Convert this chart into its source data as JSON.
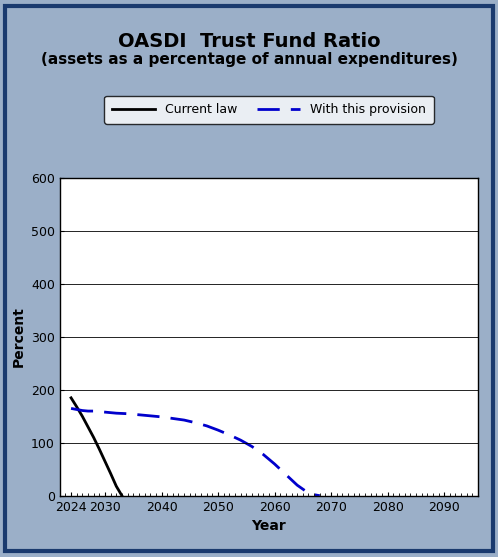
{
  "title": "OASDI  Trust Fund Ratio",
  "subtitle": "(assets as a percentage of annual expenditures)",
  "xlabel": "Year",
  "ylabel": "Percent",
  "xlim": [
    2022,
    2096
  ],
  "ylim": [
    0,
    600
  ],
  "yticks": [
    0,
    100,
    200,
    300,
    400,
    500,
    600
  ],
  "xticks": [
    2024,
    2030,
    2040,
    2050,
    2060,
    2070,
    2080,
    2090
  ],
  "background_outer": "#9bafc8",
  "background_inner": "#b8c8dc",
  "background_plot": "#ffffff",
  "border_color": "#1a3a6e",
  "current_law": {
    "x": [
      2024,
      2025,
      2026,
      2027,
      2028,
      2029,
      2030,
      2031,
      2032,
      2033
    ],
    "y": [
      185,
      168,
      150,
      130,
      110,
      88,
      65,
      42,
      18,
      0
    ],
    "color": "#000000",
    "linewidth": 2.0,
    "label": "Current law"
  },
  "provision": {
    "x": [
      2024,
      2025,
      2026,
      2027,
      2028,
      2029,
      2030,
      2032,
      2034,
      2036,
      2038,
      2040,
      2042,
      2044,
      2046,
      2048,
      2050,
      2052,
      2054,
      2056,
      2058,
      2060,
      2062,
      2064,
      2066,
      2067,
      2068
    ],
    "y": [
      165,
      163,
      161,
      160,
      160,
      159,
      158,
      156,
      155,
      153,
      151,
      149,
      146,
      143,
      138,
      132,
      124,
      115,
      105,
      93,
      78,
      60,
      40,
      20,
      5,
      2,
      0
    ],
    "color": "#0000cc",
    "linewidth": 2.0,
    "label": "With this provision"
  },
  "legend_box_color": "#ffffff",
  "legend_box_edge": "#000000",
  "title_fontsize": 14,
  "subtitle_fontsize": 11,
  "axis_label_fontsize": 10,
  "tick_fontsize": 9,
  "legend_fontsize": 9
}
